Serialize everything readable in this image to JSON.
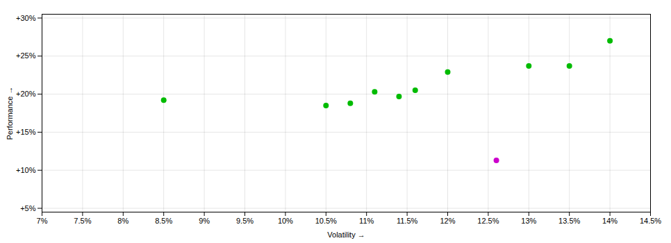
{
  "chart_data": {
    "type": "scatter",
    "xlabel": "Volatility",
    "ylabel": "Performance",
    "series": [
      {
        "color": "#00bb00",
        "x": [
          0.085,
          0.105,
          0.108,
          0.111,
          0.114,
          0.116,
          0.12,
          0.13,
          0.135,
          0.14
        ],
        "values": [
          0.192,
          0.185,
          0.188,
          0.203,
          0.197,
          0.205,
          0.229,
          0.237,
          0.237,
          0.27
        ]
      },
      {
        "color": "#cc00cc",
        "x": [
          0.126
        ],
        "values": [
          0.113
        ]
      }
    ],
    "xlim": [
      0.07,
      0.145
    ],
    "xticks": [
      {
        "value": 0.07,
        "label": "7%"
      },
      {
        "value": 0.075,
        "label": "7.5%"
      },
      {
        "value": 0.08,
        "label": "8%"
      },
      {
        "value": 0.085,
        "label": "8.5%"
      },
      {
        "value": 0.09,
        "label": "9%"
      },
      {
        "value": 0.095,
        "label": "9.5%"
      },
      {
        "value": 0.1,
        "label": "10%"
      },
      {
        "value": 0.105,
        "label": "10.5%"
      },
      {
        "value": 0.11,
        "label": "11%"
      },
      {
        "value": 0.115,
        "label": "11.5%"
      },
      {
        "value": 0.12,
        "label": "12%"
      },
      {
        "value": 0.125,
        "label": "12.5%"
      },
      {
        "value": 0.13,
        "label": "13%"
      },
      {
        "value": 0.135,
        "label": "13.5%"
      },
      {
        "value": 0.14,
        "label": "14%"
      },
      {
        "value": 0.145,
        "label": "14.5%"
      }
    ],
    "ylim": [
      0.045,
      0.305
    ],
    "yticks": [
      {
        "value": 0.05,
        "label": "+5%"
      },
      {
        "value": 0.1,
        "label": "+10%"
      },
      {
        "value": 0.15,
        "label": "+15%"
      },
      {
        "value": 0.2,
        "label": "+20%"
      },
      {
        "value": 0.25,
        "label": "+25%"
      },
      {
        "value": 0.3,
        "label": "+30%"
      }
    ],
    "grid": true
  }
}
